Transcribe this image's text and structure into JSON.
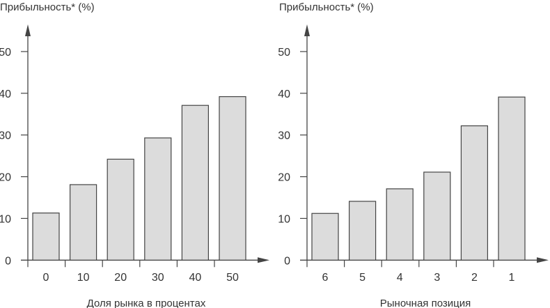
{
  "chart_data": [
    {
      "type": "bar",
      "title": "",
      "ylabel": "Прибыльность* (%)",
      "xlabel": "Доля рынка в процентах",
      "categories": [
        "0",
        "10",
        "20",
        "30",
        "40",
        "50"
      ],
      "values": [
        11.3,
        18.1,
        24.2,
        29.3,
        37.1,
        39.2
      ],
      "yticks": [
        "0",
        "10",
        "20",
        "30",
        "40",
        "50"
      ],
      "ylim": [
        0,
        50
      ],
      "grid": false
    },
    {
      "type": "bar",
      "title": "",
      "ylabel": "Прибыльность* (%)",
      "xlabel": "Рыночная позиция",
      "categories": [
        "6",
        "5",
        "4",
        "3",
        "2",
        "1"
      ],
      "values": [
        11.2,
        14.1,
        17.1,
        21.1,
        32.2,
        39.1
      ],
      "yticks": [
        "0",
        "10",
        "20",
        "30",
        "40",
        "50"
      ],
      "ylim": [
        0,
        50
      ],
      "grid": false
    }
  ],
  "colors": {
    "bar_fill": "#dcdcdc",
    "bar_stroke": "#444444",
    "axis": "#444444"
  }
}
